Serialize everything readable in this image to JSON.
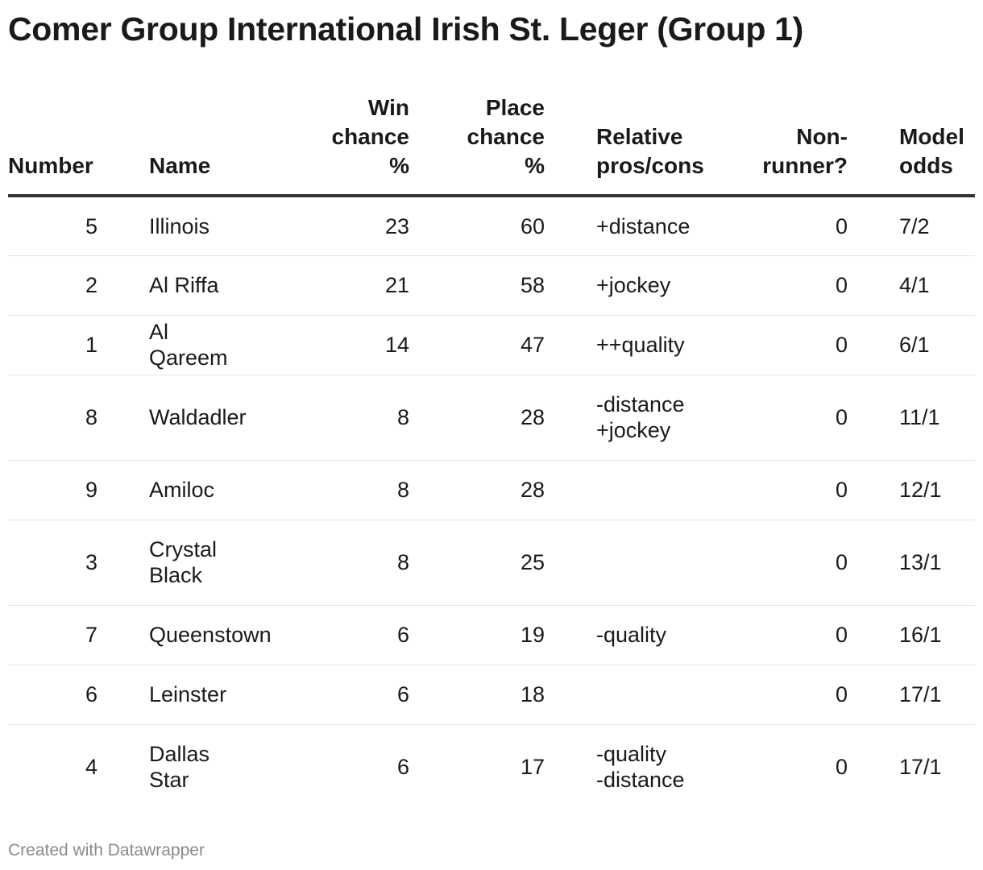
{
  "title": "Comer Group International Irish St. Leger (Group 1)",
  "footer": "Created with Datawrapper",
  "columns": [
    {
      "key": "number",
      "label": "Number"
    },
    {
      "key": "name",
      "label": "Name"
    },
    {
      "key": "win",
      "label": "Win\nchance\n%"
    },
    {
      "key": "place",
      "label": "Place\nchance\n%"
    },
    {
      "key": "proscons",
      "label": "Relative\npros/cons"
    },
    {
      "key": "nonrunner",
      "label": "Non-\nrunner?"
    },
    {
      "key": "odds",
      "label": "Model\nodds"
    }
  ],
  "chart_data": {
    "type": "table",
    "columns": [
      "Number",
      "Name",
      "Win chance %",
      "Place chance %",
      "Relative pros/cons",
      "Non-runner?",
      "Model odds"
    ],
    "rows": [
      {
        "number": "5",
        "name": "Illinois",
        "win": "23",
        "place": "60",
        "proscons": "+distance",
        "nonrunner": "0",
        "odds": "7/2"
      },
      {
        "number": "2",
        "name": "Al Riffa",
        "win": "21",
        "place": "58",
        "proscons": "+jockey",
        "nonrunner": "0",
        "odds": "4/1"
      },
      {
        "number": "1",
        "name": "Al Qareem",
        "win": "14",
        "place": "47",
        "proscons": "++quality",
        "nonrunner": "0",
        "odds": "6/1"
      },
      {
        "number": "8",
        "name": "Waldadler",
        "win": "8",
        "place": "28",
        "proscons": "-distance\n+jockey",
        "nonrunner": "0",
        "odds": "11/1"
      },
      {
        "number": "9",
        "name": "Amiloc",
        "win": "8",
        "place": "28",
        "proscons": "",
        "nonrunner": "0",
        "odds": "12/1"
      },
      {
        "number": "3",
        "name": "Crystal\nBlack",
        "win": "8",
        "place": "25",
        "proscons": "",
        "nonrunner": "0",
        "odds": "13/1"
      },
      {
        "number": "7",
        "name": "Queenstown",
        "win": "6",
        "place": "19",
        "proscons": "-quality",
        "nonrunner": "0",
        "odds": "16/1"
      },
      {
        "number": "6",
        "name": "Leinster",
        "win": "6",
        "place": "18",
        "proscons": "",
        "nonrunner": "0",
        "odds": "17/1"
      },
      {
        "number": "4",
        "name": "Dallas Star",
        "win": "6",
        "place": "17",
        "proscons": "-quality\n-distance",
        "nonrunner": "0",
        "odds": "17/1"
      }
    ]
  }
}
